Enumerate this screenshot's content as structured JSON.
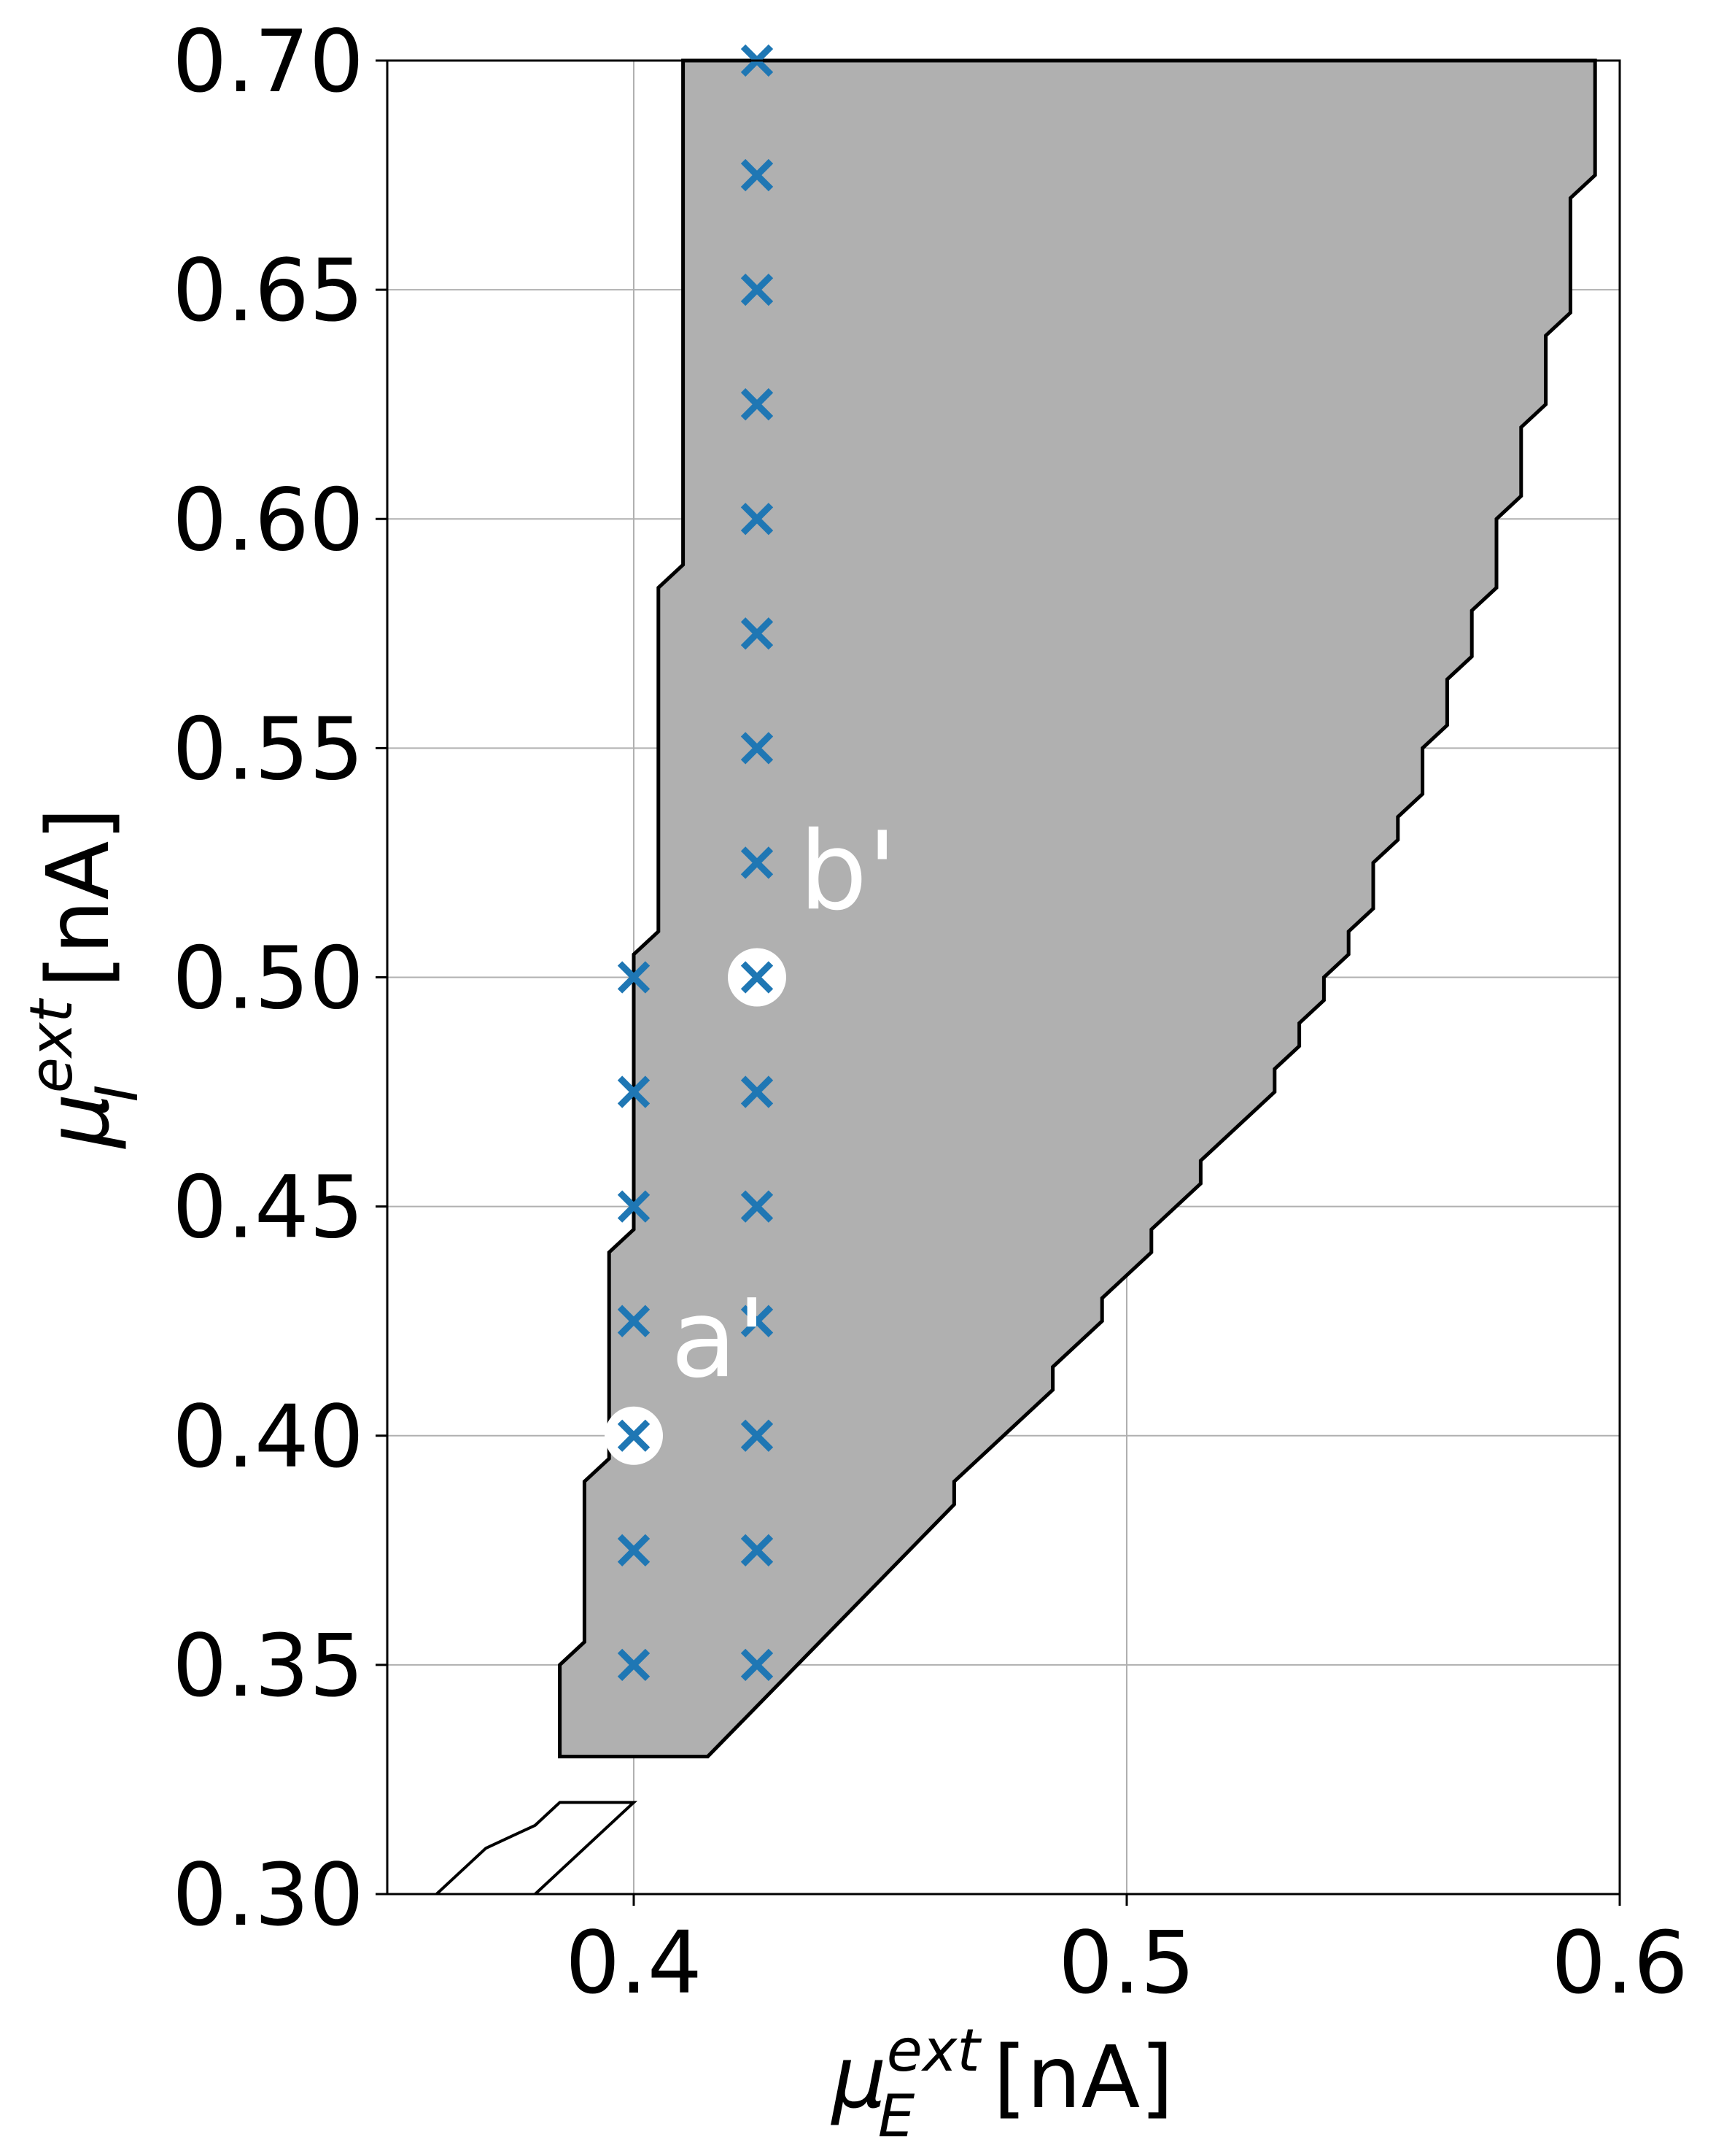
{
  "chart_data": {
    "type": "scatter",
    "title": "",
    "xlabel": {
      "base": "μ",
      "sup": "ext",
      "sub": "E",
      "unit": " [nA]"
    },
    "ylabel": {
      "base": "μ",
      "sup": "ext",
      "sub": "I",
      "unit": " [nA]"
    },
    "xlim": [
      0.35,
      0.6
    ],
    "ylim": [
      0.3,
      0.7
    ],
    "xticks": [
      0.4,
      0.5,
      0.6
    ],
    "xtick_labels": [
      "0.4",
      "0.5",
      "0.6"
    ],
    "yticks": [
      0.3,
      0.35,
      0.4,
      0.45,
      0.5,
      0.55,
      0.6,
      0.65,
      0.7
    ],
    "ytick_labels": [
      "0.30",
      "0.35",
      "0.40",
      "0.45",
      "0.50",
      "0.55",
      "0.60",
      "0.65",
      "0.70"
    ],
    "grid": true,
    "colors": {
      "region_fill": "#b0b0b0",
      "region_edge": "#000000",
      "marker": "#1f77b4",
      "highlight": "#ffffff"
    },
    "region": [
      [
        0.41,
        0.7
      ],
      [
        0.415,
        0.7
      ],
      [
        0.595,
        0.7
      ],
      [
        0.595,
        0.675
      ],
      [
        0.59,
        0.67
      ],
      [
        0.59,
        0.645
      ],
      [
        0.585,
        0.64
      ],
      [
        0.585,
        0.625
      ],
      [
        0.58,
        0.62
      ],
      [
        0.58,
        0.605
      ],
      [
        0.575,
        0.6
      ],
      [
        0.575,
        0.585
      ],
      [
        0.57,
        0.58
      ],
      [
        0.57,
        0.57
      ],
      [
        0.565,
        0.565
      ],
      [
        0.565,
        0.555
      ],
      [
        0.56,
        0.55
      ],
      [
        0.56,
        0.54
      ],
      [
        0.555,
        0.535
      ],
      [
        0.555,
        0.53
      ],
      [
        0.55,
        0.525
      ],
      [
        0.55,
        0.515
      ],
      [
        0.545,
        0.51
      ],
      [
        0.545,
        0.505
      ],
      [
        0.54,
        0.5
      ],
      [
        0.54,
        0.495
      ],
      [
        0.535,
        0.49
      ],
      [
        0.535,
        0.485
      ],
      [
        0.53,
        0.48
      ],
      [
        0.53,
        0.475
      ],
      [
        0.515,
        0.46
      ],
      [
        0.515,
        0.455
      ],
      [
        0.505,
        0.445
      ],
      [
        0.505,
        0.44
      ],
      [
        0.495,
        0.43
      ],
      [
        0.495,
        0.425
      ],
      [
        0.485,
        0.415
      ],
      [
        0.485,
        0.41
      ],
      [
        0.465,
        0.39
      ],
      [
        0.465,
        0.385
      ],
      [
        0.415,
        0.33
      ],
      [
        0.385,
        0.33
      ],
      [
        0.385,
        0.35
      ],
      [
        0.39,
        0.355
      ],
      [
        0.39,
        0.39
      ],
      [
        0.395,
        0.395
      ],
      [
        0.395,
        0.44
      ],
      [
        0.4,
        0.445
      ],
      [
        0.4,
        0.505
      ],
      [
        0.405,
        0.51
      ],
      [
        0.405,
        0.585
      ],
      [
        0.41,
        0.59
      ],
      [
        0.41,
        0.695
      ]
    ],
    "outline_fragments": [
      [
        [
          0.36,
          0.3
        ],
        [
          0.365,
          0.305
        ],
        [
          0.37,
          0.31
        ],
        [
          0.375,
          0.3125
        ],
        [
          0.38,
          0.315
        ],
        [
          0.385,
          0.32
        ],
        [
          0.4,
          0.32
        ],
        [
          0.38,
          0.3
        ]
      ]
    ],
    "series": [
      {
        "marker": "x",
        "points": [
          [
            0.4,
            0.35
          ],
          [
            0.4,
            0.375
          ],
          [
            0.4,
            0.4
          ],
          [
            0.4,
            0.425
          ],
          [
            0.4,
            0.45
          ],
          [
            0.4,
            0.475
          ],
          [
            0.4,
            0.5
          ],
          [
            0.425,
            0.35
          ],
          [
            0.425,
            0.375
          ],
          [
            0.425,
            0.4
          ],
          [
            0.425,
            0.425
          ],
          [
            0.425,
            0.45
          ],
          [
            0.425,
            0.475
          ],
          [
            0.425,
            0.5
          ],
          [
            0.425,
            0.525
          ],
          [
            0.425,
            0.55
          ],
          [
            0.425,
            0.575
          ],
          [
            0.425,
            0.6
          ],
          [
            0.425,
            0.625
          ],
          [
            0.425,
            0.65
          ],
          [
            0.425,
            0.675
          ],
          [
            0.425,
            0.7
          ]
        ]
      }
    ],
    "highlights": [
      {
        "x": 0.4,
        "y": 0.4,
        "label": "a'",
        "label_x": 0.4075,
        "label_y": 0.413
      },
      {
        "x": 0.425,
        "y": 0.5,
        "label": "b'",
        "label_x": 0.4335,
        "label_y": 0.515
      }
    ]
  }
}
